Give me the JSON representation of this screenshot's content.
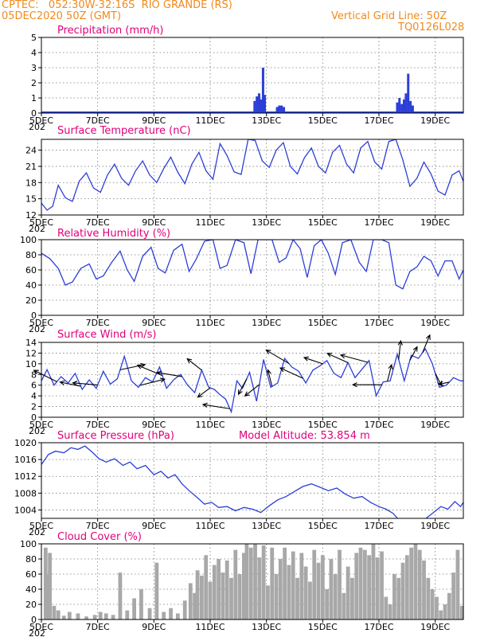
{
  "header": {
    "line1_left": "CPTEC:   052:30W-32:16S  RIO GRANDE (RS)",
    "line2_left": "05DEC2020 50Z (GMT)",
    "line1_right": "Vertical Grid Line: 50Z",
    "line2_right": "TQ0126L028"
  },
  "colors": {
    "series": "#2c3fd6",
    "cloud": "#a8a8a8",
    "title": "#e0007a",
    "header": "#f08a1c",
    "wind_arrow": "#000000"
  },
  "x_axis": {
    "ticks": [
      "5DEC",
      "7DEC",
      "9DEC",
      "11DEC",
      "13DEC",
      "15DEC",
      "17DEC",
      "19DEC"
    ],
    "year_stub": "202",
    "start_day": 5,
    "end_day": 20
  },
  "chart_data": [
    {
      "id": "precip",
      "type": "bar",
      "title": "Precipitation (mm/h)",
      "ylim": [
        0,
        5
      ],
      "yticks": [
        0,
        1,
        2,
        3,
        4,
        5
      ],
      "grid": true,
      "x": [
        12.58,
        12.66,
        12.74,
        12.82,
        12.88,
        12.94,
        13.38,
        13.46,
        13.54,
        13.62,
        17.65,
        17.73,
        17.81,
        17.89,
        17.96,
        18.04,
        18.12,
        18.2
      ],
      "values": [
        0.8,
        1.1,
        1.3,
        0.9,
        3.0,
        1.2,
        0.4,
        0.5,
        0.5,
        0.4,
        0.7,
        1.0,
        0.6,
        0.9,
        1.3,
        2.6,
        0.8,
        0.5
      ]
    },
    {
      "id": "temp",
      "type": "line",
      "title": "Surface Temperature (nC)",
      "ylim": [
        12,
        26
      ],
      "yticks": [
        12,
        15,
        18,
        21,
        24
      ],
      "grid": true,
      "x": [
        5.0,
        5.2,
        5.4,
        5.6,
        5.85,
        6.1,
        6.35,
        6.6,
        6.85,
        7.1,
        7.35,
        7.6,
        7.85,
        8.1,
        8.35,
        8.6,
        8.85,
        9.1,
        9.35,
        9.6,
        9.85,
        10.1,
        10.35,
        10.6,
        10.85,
        11.1,
        11.35,
        11.6,
        11.85,
        12.1,
        12.35,
        12.6,
        12.85,
        13.1,
        13.35,
        13.6,
        13.85,
        14.1,
        14.35,
        14.6,
        14.85,
        15.1,
        15.35,
        15.6,
        15.85,
        16.1,
        16.35,
        16.6,
        16.85,
        17.1,
        17.35,
        17.6,
        17.85,
        18.1,
        18.35,
        18.6,
        18.85,
        19.1,
        19.35,
        19.6,
        19.85,
        20.0
      ],
      "values": [
        14.2,
        12.9,
        13.6,
        17.5,
        15.2,
        14.5,
        18.3,
        19.8,
        17.0,
        16.2,
        19.4,
        21.4,
        18.8,
        17.5,
        20.2,
        22.0,
        19.4,
        18.0,
        20.6,
        22.7,
        19.9,
        17.8,
        21.4,
        23.6,
        20.2,
        18.6,
        25.2,
        23.0,
        20.0,
        19.5,
        26.0,
        25.8,
        22.0,
        20.8,
        24.0,
        25.4,
        21.0,
        19.6,
        22.6,
        24.4,
        21.0,
        19.8,
        23.6,
        24.9,
        21.4,
        19.8,
        24.4,
        25.6,
        21.8,
        20.5,
        25.6,
        26.0,
        22.2,
        17.3,
        18.8,
        21.8,
        19.6,
        16.4,
        15.7,
        19.4,
        20.2,
        18.2
      ]
    },
    {
      "id": "rh",
      "type": "line",
      "title": "Relative Humidity (%)",
      "ylim": [
        0,
        100
      ],
      "yticks": [
        0,
        20,
        40,
        60,
        80,
        100
      ],
      "grid": true,
      "x": [
        5.0,
        5.3,
        5.6,
        5.85,
        6.1,
        6.4,
        6.7,
        6.95,
        7.2,
        7.5,
        7.8,
        8.05,
        8.3,
        8.6,
        8.9,
        9.15,
        9.4,
        9.7,
        10.0,
        10.25,
        10.5,
        10.8,
        11.1,
        11.35,
        11.6,
        11.9,
        12.2,
        12.45,
        12.7,
        12.95,
        13.2,
        13.45,
        13.7,
        13.95,
        14.2,
        14.45,
        14.7,
        14.95,
        15.2,
        15.45,
        15.7,
        16.0,
        16.3,
        16.55,
        16.8,
        17.1,
        17.35,
        17.6,
        17.85,
        18.1,
        18.35,
        18.6,
        18.85,
        19.1,
        19.35,
        19.6,
        19.85,
        20.0
      ],
      "values": [
        82,
        75,
        62,
        40,
        44,
        62,
        68,
        48,
        52,
        70,
        85,
        60,
        45,
        78,
        90,
        62,
        56,
        86,
        94,
        58,
        74,
        98,
        100,
        62,
        66,
        100,
        96,
        55,
        100,
        100,
        100,
        70,
        76,
        100,
        88,
        50,
        92,
        100,
        82,
        54,
        96,
        100,
        70,
        58,
        100,
        100,
        96,
        40,
        35,
        58,
        64,
        78,
        72,
        52,
        72,
        72,
        48,
        60
      ]
    },
    {
      "id": "wind",
      "type": "line",
      "title": "Surface Wind (m/s)",
      "ylim": [
        0,
        14
      ],
      "yticks": [
        0,
        2,
        4,
        6,
        8,
        10,
        12,
        14
      ],
      "grid": true,
      "x": [
        5.0,
        5.2,
        5.45,
        5.7,
        5.95,
        6.2,
        6.45,
        6.7,
        6.95,
        7.2,
        7.45,
        7.7,
        7.95,
        8.2,
        8.45,
        8.7,
        8.95,
        9.2,
        9.45,
        9.7,
        9.95,
        10.2,
        10.45,
        10.7,
        10.95,
        11.15,
        11.35,
        11.55,
        11.75,
        11.95,
        12.15,
        12.4,
        12.65,
        12.9,
        13.15,
        13.4,
        13.65,
        13.9,
        14.15,
        14.4,
        14.65,
        14.9,
        15.15,
        15.4,
        15.65,
        15.9,
        16.15,
        16.4,
        16.65,
        16.9,
        17.15,
        17.4,
        17.65,
        17.9,
        18.15,
        18.4,
        18.65,
        18.9,
        19.15,
        19.4,
        19.65,
        19.9,
        20.0
      ],
      "values": [
        6.8,
        8.9,
        6.0,
        7.6,
        6.4,
        8.2,
        5.2,
        7.0,
        5.4,
        8.6,
        6.2,
        7.2,
        11.4,
        6.8,
        5.6,
        7.4,
        6.6,
        9.4,
        5.4,
        7.0,
        8.0,
        6.0,
        4.6,
        8.8,
        5.6,
        5.2,
        4.2,
        3.4,
        1.0,
        6.8,
        5.4,
        8.4,
        3.0,
        10.8,
        5.6,
        6.4,
        11.0,
        9.4,
        8.6,
        6.4,
        8.8,
        9.6,
        10.6,
        8.2,
        7.4,
        10.2,
        7.4,
        9.0,
        10.6,
        4.0,
        6.6,
        6.8,
        11.8,
        6.8,
        11.6,
        11.0,
        12.8,
        10.0,
        5.6,
        6.0,
        7.4,
        6.8,
        6.8
      ],
      "arrows": [
        {
          "x": 5.55,
          "u": -1.1,
          "v": 0.55
        },
        {
          "x": 6.4,
          "u": -1.0,
          "v": 0.2
        },
        {
          "x": 7.0,
          "u": -1.2,
          "v": 0.1
        },
        {
          "x": 7.8,
          "u": 1.2,
          "v": 0.25
        },
        {
          "x": 8.5,
          "u": 1.2,
          "v": 0.3
        },
        {
          "x": 9.3,
          "u": -1.2,
          "v": 0.5
        },
        {
          "x": 10.0,
          "u": -1.2,
          "v": 0.2
        },
        {
          "x": 10.7,
          "u": -0.7,
          "v": 0.55
        },
        {
          "x": 11.0,
          "u": -0.6,
          "v": -0.45
        },
        {
          "x": 11.7,
          "u": -1.3,
          "v": 0.2
        },
        {
          "x": 12.3,
          "u": -0.4,
          "v": -0.75
        },
        {
          "x": 12.75,
          "u": -0.7,
          "v": -0.55
        },
        {
          "x": 13.2,
          "u": -0.2,
          "v": 0.8
        },
        {
          "x": 13.8,
          "u": -1.1,
          "v": 0.65
        },
        {
          "x": 14.3,
          "u": -1.1,
          "v": 0.5
        },
        {
          "x": 15.0,
          "u": -0.9,
          "v": 0.3
        },
        {
          "x": 15.9,
          "u": -1.0,
          "v": 0.45
        },
        {
          "x": 16.6,
          "u": -1.3,
          "v": 0.35
        },
        {
          "x": 17.1,
          "u": -1.4,
          "v": 0.0
        },
        {
          "x": 17.3,
          "u": 0.2,
          "v": 0.8
        },
        {
          "x": 17.7,
          "u": 0.1,
          "v": 0.9
        },
        {
          "x": 18.1,
          "u": 0.35,
          "v": 0.65
        },
        {
          "x": 18.55,
          "u": 0.35,
          "v": 0.85
        },
        {
          "x": 19.0,
          "u": 0.3,
          "v": -0.6
        },
        {
          "x": 19.5,
          "u": -0.5,
          "v": -0.1
        }
      ]
    },
    {
      "id": "pressure",
      "type": "line",
      "title": "Surface Pressure (hPa)",
      "note": "Model Altitude: 53.854 m",
      "ylim": [
        1002,
        1020
      ],
      "yticks": [
        1004,
        1008,
        1012,
        1016,
        1020
      ],
      "grid": true,
      "x": [
        5.0,
        5.25,
        5.5,
        5.8,
        6.05,
        6.3,
        6.55,
        6.8,
        7.05,
        7.3,
        7.6,
        7.9,
        8.15,
        8.4,
        8.7,
        9.0,
        9.25,
        9.5,
        9.75,
        10.0,
        10.25,
        10.5,
        10.8,
        11.05,
        11.3,
        11.6,
        11.9,
        12.2,
        12.5,
        12.8,
        13.1,
        13.4,
        13.7,
        14.0,
        14.3,
        14.6,
        14.9,
        15.2,
        15.5,
        15.8,
        16.1,
        16.4,
        16.7,
        17.0,
        17.25,
        17.5,
        18.0,
        18.6,
        18.9,
        19.2,
        19.45,
        19.7,
        19.9,
        20.0
      ],
      "values": [
        1014.8,
        1017.2,
        1018.0,
        1017.6,
        1018.8,
        1018.4,
        1019.2,
        1017.8,
        1016.2,
        1015.4,
        1016.2,
        1014.6,
        1015.4,
        1013.8,
        1014.6,
        1012.4,
        1013.2,
        1011.6,
        1012.4,
        1010.2,
        1008.6,
        1007.2,
        1005.4,
        1005.8,
        1004.6,
        1004.8,
        1003.8,
        1004.6,
        1004.2,
        1003.4,
        1005.0,
        1006.4,
        1007.2,
        1008.4,
        1009.6,
        1010.2,
        1009.4,
        1008.6,
        1009.2,
        1007.8,
        1006.8,
        1007.2,
        1005.8,
        1004.8,
        1004.2,
        1003.2,
        999.5,
        1001.6,
        1003.2,
        1004.8,
        1004.2,
        1006.0,
        1004.8,
        1005.8
      ]
    },
    {
      "id": "cloud",
      "type": "bar",
      "title": "Cloud Cover (%)",
      "ylim": [
        0,
        100
      ],
      "yticks": [
        0,
        20,
        40,
        60,
        80,
        100
      ],
      "grid": true,
      "x": [
        5.15,
        5.22,
        5.3,
        5.45,
        5.6,
        5.8,
        6.0,
        6.3,
        6.6,
        6.9,
        7.1,
        7.3,
        7.55,
        7.8,
        8.05,
        8.3,
        8.55,
        8.85,
        9.1,
        9.35,
        9.6,
        9.85,
        10.1,
        10.3,
        10.45,
        10.55,
        10.7,
        10.85,
        11.0,
        11.15,
        11.3,
        11.45,
        11.6,
        11.75,
        11.9,
        12.05,
        12.2,
        12.3,
        12.45,
        12.6,
        12.75,
        12.9,
        13.05,
        13.2,
        13.35,
        13.5,
        13.65,
        13.8,
        13.95,
        14.1,
        14.25,
        14.4,
        14.55,
        14.7,
        14.85,
        15.0,
        15.15,
        15.3,
        15.45,
        15.6,
        15.75,
        15.9,
        16.05,
        16.2,
        16.35,
        16.5,
        16.65,
        16.8,
        16.95,
        17.1,
        17.25,
        17.4,
        17.55,
        17.7,
        17.85,
        18.0,
        18.15,
        18.3,
        18.45,
        18.6,
        18.75,
        18.9,
        19.05,
        19.2,
        19.35,
        19.5,
        19.65,
        19.8,
        19.95
      ],
      "values": [
        95,
        60,
        88,
        18,
        12,
        5,
        10,
        8,
        4,
        6,
        10,
        8,
        6,
        62,
        12,
        28,
        40,
        15,
        75,
        10,
        15,
        8,
        25,
        48,
        35,
        65,
        58,
        85,
        50,
        72,
        80,
        62,
        78,
        55,
        92,
        60,
        88,
        100,
        95,
        100,
        82,
        98,
        45,
        95,
        60,
        80,
        95,
        72,
        90,
        55,
        88,
        70,
        50,
        92,
        75,
        85,
        40,
        80,
        60,
        92,
        35,
        70,
        55,
        88,
        95,
        92,
        85,
        100,
        82,
        90,
        30,
        20,
        60,
        55,
        75,
        85,
        95,
        100,
        92,
        78,
        55,
        40,
        30,
        12,
        20,
        35,
        62,
        92,
        18
      ]
    }
  ],
  "panels_text": {
    "precip_title": "Precipitation (mm/h)",
    "temp_title": "Surface Temperature (nC)",
    "rh_title": "Relative Humidity (%)",
    "wind_title": "Surface Wind (m/s)",
    "pressure_title": "Surface Pressure (hPa)",
    "pressure_note": "Model Altitude: 53.854 m",
    "cloud_title": "Cloud Cover (%)"
  }
}
